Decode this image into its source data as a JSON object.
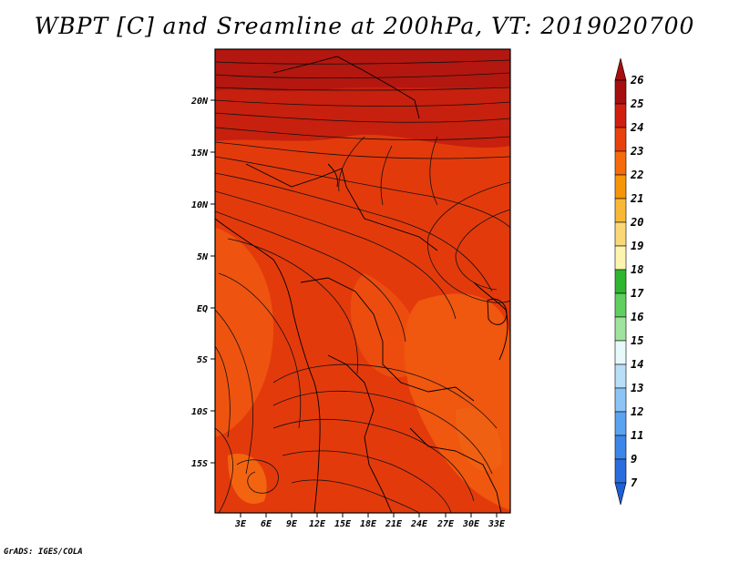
{
  "title": "WBPT [C] and Sreamline at 200hPa, VT: 2019020700",
  "credit": "GrADS: IGES/COLA",
  "map": {
    "lat_labels": [
      "20N",
      "15N",
      "10N",
      "5N",
      "EQ",
      "5S",
      "10S",
      "15S"
    ],
    "lon_labels": [
      "3E",
      "6E",
      "9E",
      "12E",
      "15E",
      "18E",
      "21E",
      "24E",
      "27E",
      "30E",
      "33E"
    ],
    "base_fill": "#e33a0c"
  },
  "colorbar": {
    "levels": [
      "26",
      "25",
      "24",
      "23",
      "22",
      "21",
      "20",
      "19",
      "18",
      "17",
      "16",
      "15",
      "14",
      "13",
      "12",
      "11",
      "9",
      "7"
    ],
    "colors": [
      "#a50f0f",
      "#d21e0f",
      "#e9410b",
      "#f56a0a",
      "#f79509",
      "#f7b935",
      "#fbd877",
      "#fdf4b0",
      "#2fb62f",
      "#5fcf5f",
      "#9fe39f",
      "#e8f9fb",
      "#b9def8",
      "#8cc4f6",
      "#5aa3f1",
      "#3a87e9",
      "#2a6edd"
    ]
  }
}
